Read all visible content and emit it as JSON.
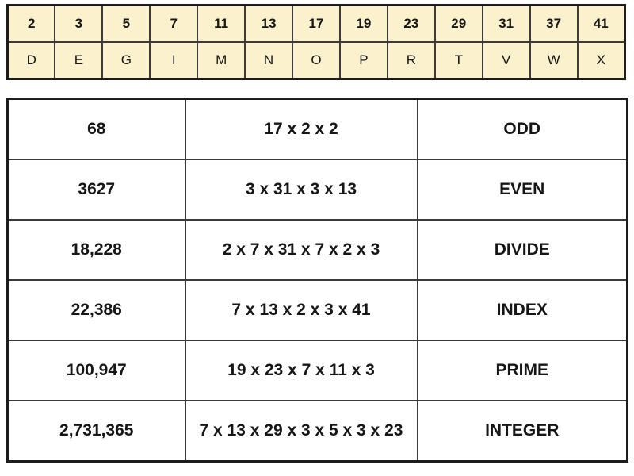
{
  "legend_table": {
    "primes": [
      "2",
      "3",
      "5",
      "7",
      "11",
      "13",
      "17",
      "19",
      "23",
      "29",
      "31",
      "37",
      "41"
    ],
    "letters": [
      "D",
      "E",
      "G",
      "I",
      "M",
      "N",
      "O",
      "P",
      "R",
      "T",
      "V",
      "W",
      "X"
    ]
  },
  "puzzle_table": {
    "rows": [
      {
        "number": "68",
        "factors": "17 x 2 x 2",
        "word": "ODD"
      },
      {
        "number": "3627",
        "factors": "3 x 31 x 3 x 13",
        "word": "EVEN"
      },
      {
        "number": "18,228",
        "factors": "2 x 7 x 31 x 7 x 2 x 3",
        "word": "DIVIDE"
      },
      {
        "number": "22,386",
        "factors": "7 x 13 x 2 x 3 x 41",
        "word": "INDEX"
      },
      {
        "number": "100,947",
        "factors": "19 x 23 x 7 x 11 x 3",
        "word": "PRIME"
      },
      {
        "number": "2,731,365",
        "factors": "7 x 13 x 29 x 3 x 5 x 3 x 23",
        "word": "INTEGER"
      }
    ]
  },
  "colors": {
    "legend_cell_bg": "#fbf1cd",
    "puzzle_cell_bg": "#ffffff",
    "border_inner": "#3a3a3a",
    "border_outer": "#1c1c1c",
    "text": "#161616"
  }
}
